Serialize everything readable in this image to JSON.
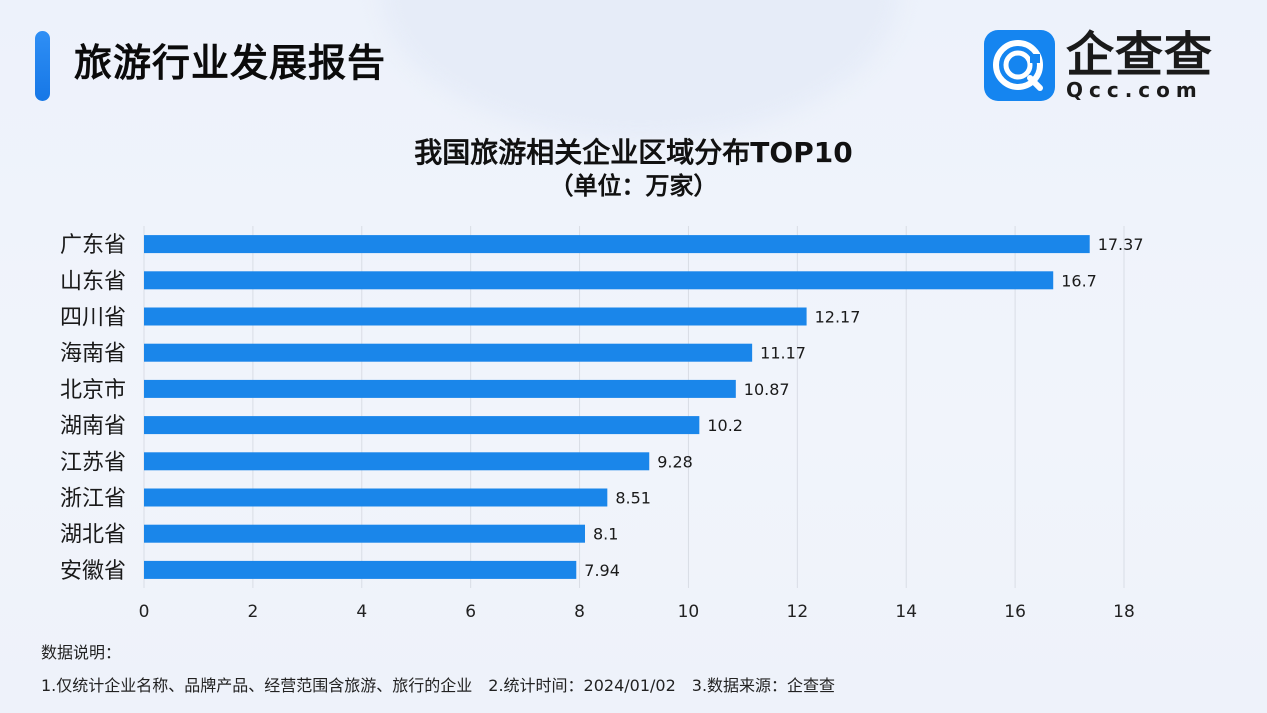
{
  "header": {
    "title": "旅游行业发展报告",
    "logo_name": "企查查",
    "logo_url": "Qcc.com"
  },
  "colors": {
    "accent": "#1a86ea",
    "bar": "#1a86ea",
    "logo_bg": "#1585f0"
  },
  "chart_data": {
    "type": "bar",
    "orientation": "horizontal",
    "title": "我国旅游相关企业区域分布TOP10",
    "subtitle": "（单位：万家）",
    "categories": [
      "广东省",
      "山东省",
      "四川省",
      "海南省",
      "北京市",
      "湖南省",
      "江苏省",
      "浙江省",
      "湖北省",
      "安徽省"
    ],
    "values": [
      17.37,
      16.7,
      12.17,
      11.17,
      10.87,
      10.2,
      9.28,
      8.51,
      8.1,
      7.94
    ],
    "value_labels": [
      "17.37",
      "16.7",
      "12.17",
      "11.17",
      "10.87",
      "10.2",
      "9.28",
      "8.51",
      "8.1",
      "7.94"
    ],
    "xlim": [
      0,
      18
    ],
    "xticks": [
      "0",
      "2",
      "4",
      "6",
      "8",
      "10",
      "12",
      "14",
      "16",
      "18"
    ],
    "grid": "vertical",
    "xlabel": "",
    "ylabel": ""
  },
  "notes": {
    "label": "数据说明：",
    "items": [
      "1.仅统计企业名称、品牌产品、经营范围含旅游、旅行的企业",
      "2.统计时间：2024/01/02",
      "3.数据来源：企查查"
    ]
  }
}
